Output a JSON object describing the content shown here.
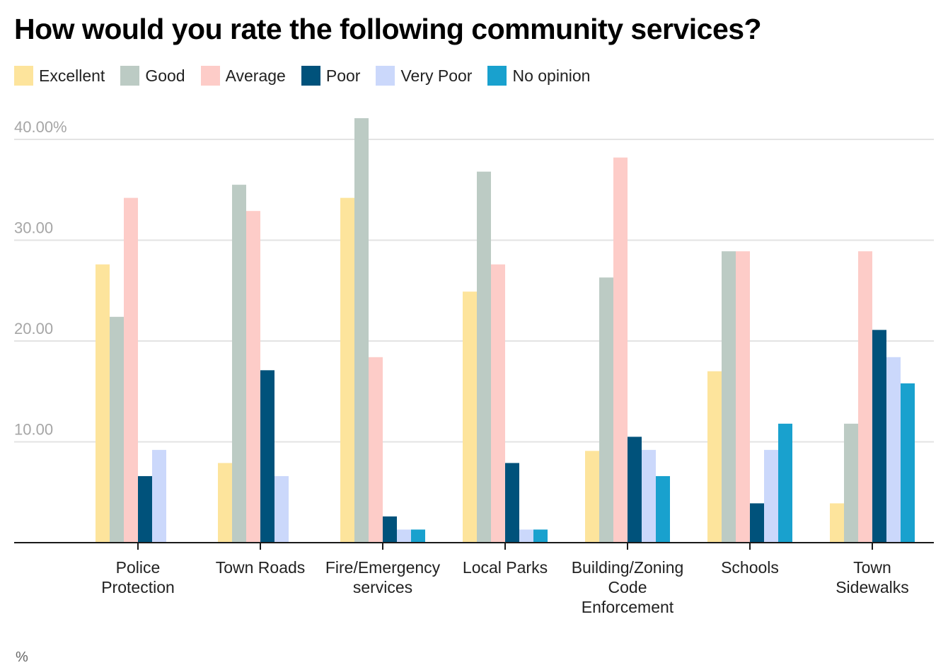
{
  "chart_data": {
    "type": "bar",
    "title": "How would you rate the following community services?",
    "xlabel": "",
    "ylabel": "%",
    "ylim": [
      0,
      40
    ],
    "yticks": [
      {
        "value": 10,
        "label": "10.00"
      },
      {
        "value": 20,
        "label": "20.00"
      },
      {
        "value": 30,
        "label": "30.00"
      },
      {
        "value": 40,
        "label": "40.00%"
      }
    ],
    "grid": true,
    "legend_position": "top-left",
    "categories": [
      [
        "Police",
        "Protection"
      ],
      [
        "Town Roads"
      ],
      [
        "Fire/Emergency",
        "services"
      ],
      [
        "Local Parks"
      ],
      [
        "Building/Zoning",
        "Code",
        "Enforcement"
      ],
      [
        "Schools"
      ],
      [
        "Town",
        "Sidewalks"
      ]
    ],
    "series": [
      {
        "name": "Excellent",
        "color": "#fde49c",
        "values": [
          27.6,
          7.9,
          34.2,
          24.9,
          9.1,
          17.0,
          3.9
        ]
      },
      {
        "name": "Good",
        "color": "#bccbc4",
        "values": [
          22.4,
          35.5,
          42.1,
          36.8,
          26.3,
          28.9,
          11.8
        ]
      },
      {
        "name": "Average",
        "color": "#fdccc8",
        "values": [
          34.2,
          32.9,
          18.4,
          27.6,
          38.2,
          28.9,
          28.9
        ]
      },
      {
        "name": "Poor",
        "color": "#00527b",
        "values": [
          6.6,
          17.1,
          2.6,
          7.9,
          10.5,
          3.9,
          21.1
        ]
      },
      {
        "name": "Very Poor",
        "color": "#cbd8fb",
        "values": [
          9.2,
          6.6,
          1.3,
          1.3,
          9.2,
          9.2,
          18.4
        ]
      },
      {
        "name": "No opinion",
        "color": "#19a1ce",
        "values": [
          0,
          0,
          1.3,
          1.3,
          6.6,
          11.8,
          15.8
        ]
      }
    ]
  },
  "footer": {
    "unit_note": "%"
  }
}
